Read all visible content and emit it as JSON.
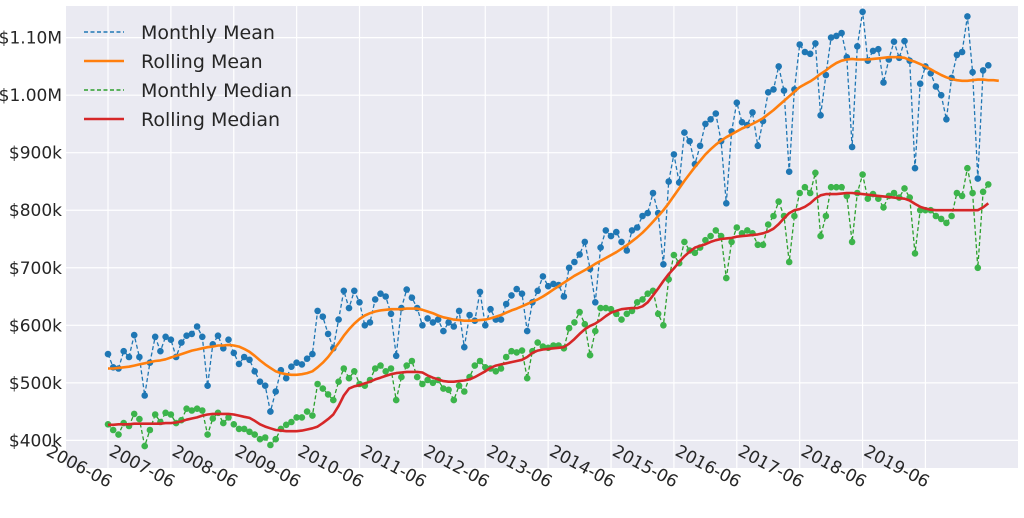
{
  "chart_data": {
    "type": "line",
    "title": "",
    "xlabel": "",
    "ylabel": "",
    "x_start": "2006-06",
    "x_tick_labels": [
      "2006-06",
      "2007-06",
      "2008-06",
      "2009-06",
      "2010-06",
      "2011-06",
      "2012-06",
      "2013-06",
      "2014-06",
      "2015-06",
      "2016-06",
      "2017-06",
      "2018-06",
      "2019-06"
    ],
    "y_tick_values": [
      400000,
      500000,
      600000,
      700000,
      800000,
      900000,
      1000000,
      1100000
    ],
    "y_tick_labels": [
      "$400k",
      "$500k",
      "$600k",
      "$700k",
      "$800k",
      "$900k",
      "$1.00M",
      "$1.10M"
    ],
    "ylim": [
      352000,
      1155000
    ],
    "grid": true,
    "legend_position": "top-left",
    "background": "#eaeaf2",
    "series": [
      {
        "name": "Monthly Mean",
        "color": "#1f77b4",
        "style": "dashed",
        "markers": true,
        "values": [
          550000,
          527000,
          525000,
          555000,
          545000,
          583000,
          545000,
          478000,
          535000,
          580000,
          555000,
          580000,
          575000,
          545000,
          570000,
          582000,
          585000,
          598000,
          580000,
          495000,
          567000,
          582000,
          560000,
          575000,
          552000,
          533000,
          545000,
          540000,
          520000,
          502000,
          495000,
          450000,
          485000,
          522000,
          508000,
          528000,
          535000,
          532000,
          542000,
          550000,
          625000,
          615000,
          585000,
          560000,
          610000,
          660000,
          630000,
          660000,
          640000,
          600000,
          605000,
          645000,
          655000,
          650000,
          620000,
          547000,
          630000,
          662000,
          648000,
          630000,
          600000,
          612000,
          605000,
          610000,
          590000,
          605000,
          598000,
          625000,
          562000,
          618000,
          608000,
          658000,
          600000,
          628000,
          610000,
          610000,
          637000,
          652000,
          663000,
          655000,
          590000,
          640000,
          660000,
          685000,
          668000,
          672000,
          670000,
          650000,
          700000,
          710000,
          723000,
          745000,
          698000,
          640000,
          735000,
          765000,
          755000,
          762000,
          745000,
          730000,
          765000,
          770000,
          790000,
          795000,
          830000,
          795000,
          706000,
          850000,
          897000,
          848000,
          935000,
          920000,
          880000,
          912000,
          950000,
          958000,
          968000,
          920000,
          812000,
          937000,
          987000,
          953000,
          948000,
          970000,
          912000,
          955000,
          1005000,
          1010000,
          1050000,
          1008000,
          867000,
          1010000,
          1088000,
          1075000,
          1072000,
          1090000,
          965000,
          1035000,
          1100000,
          1103000,
          1108000,
          1066000,
          910000,
          1085000,
          1145000,
          1060000,
          1077000,
          1080000,
          1022000,
          1062000,
          1093000,
          1065000,
          1094000,
          1060000,
          873000,
          1020000,
          1050000,
          1038000,
          1015000,
          1000000,
          958000,
          1030000,
          1070000,
          1075000,
          1137000,
          1040000,
          855000,
          1043000,
          1052000
        ]
      },
      {
        "name": "Rolling Mean",
        "color": "#ff7f0e",
        "style": "solid",
        "markers": false,
        "values": [
          525000,
          525000,
          526000,
          527000,
          528000,
          530000,
          532000,
          534000,
          536000,
          538000,
          539000,
          541000,
          544000,
          547000,
          550000,
          553000,
          556000,
          558000,
          560000,
          562000,
          563000,
          565000,
          565000,
          566000,
          565000,
          563000,
          559000,
          554000,
          547000,
          539000,
          532000,
          526000,
          520000,
          517000,
          515000,
          514000,
          514000,
          515000,
          517000,
          520000,
          527000,
          535000,
          545000,
          557000,
          569000,
          582000,
          593000,
          603000,
          611000,
          617000,
          621000,
          624000,
          626000,
          627000,
          628000,
          628000,
          628000,
          629000,
          629000,
          629000,
          627000,
          624000,
          621000,
          617000,
          614000,
          612000,
          610000,
          609000,
          608000,
          608000,
          608000,
          609000,
          610000,
          612000,
          615000,
          618000,
          622000,
          626000,
          629000,
          633000,
          637000,
          641000,
          645000,
          650000,
          656000,
          662000,
          668000,
          674000,
          680000,
          686000,
          691000,
          696000,
          701000,
          707000,
          712000,
          717000,
          722000,
          727000,
          733000,
          739000,
          746000,
          753000,
          761000,
          770000,
          780000,
          790000,
          800000,
          812000,
          825000,
          838000,
          851000,
          863000,
          875000,
          886000,
          897000,
          906000,
          914000,
          921000,
          927000,
          932000,
          937000,
          942000,
          946000,
          950000,
          955000,
          960000,
          967000,
          974000,
          982000,
          990000,
          998000,
          1006000,
          1014000,
          1019000,
          1024000,
          1030000,
          1037000,
          1043000,
          1050000,
          1056000,
          1060000,
          1062000,
          1063000,
          1062000,
          1062000,
          1062000,
          1063000,
          1064000,
          1065000,
          1066000,
          1066000,
          1066000,
          1065000,
          1061000,
          1058000,
          1054000,
          1050000,
          1045000,
          1040000,
          1035000,
          1031000,
          1028000,
          1026000,
          1025000,
          1025000,
          1026000,
          1027000,
          1027000,
          1026000,
          1026000,
          1025000
        ]
      },
      {
        "name": "Monthly Median",
        "color": "#2ca02c",
        "style": "dashed",
        "markers": true,
        "values": [
          428000,
          418000,
          410000,
          430000,
          425000,
          446000,
          437000,
          390000,
          418000,
          445000,
          432000,
          448000,
          445000,
          430000,
          435000,
          455000,
          452000,
          455000,
          452000,
          410000,
          438000,
          448000,
          430000,
          440000,
          428000,
          420000,
          420000,
          415000,
          410000,
          402000,
          405000,
          392000,
          402000,
          420000,
          427000,
          432000,
          440000,
          440000,
          450000,
          443000,
          498000,
          490000,
          480000,
          470000,
          502000,
          525000,
          508000,
          520000,
          498000,
          495000,
          505000,
          525000,
          530000,
          520000,
          525000,
          470000,
          510000,
          530000,
          538000,
          510000,
          498000,
          505000,
          500000,
          505000,
          490000,
          488000,
          470000,
          495000,
          485000,
          510000,
          530000,
          538000,
          527000,
          525000,
          520000,
          525000,
          545000,
          555000,
          553000,
          556000,
          508000,
          555000,
          570000,
          563000,
          561000,
          565000,
          565000,
          560000,
          595000,
          605000,
          623000,
          602000,
          548000,
          590000,
          630000,
          630000,
          628000,
          620000,
          610000,
          620000,
          625000,
          640000,
          645000,
          655000,
          660000,
          620000,
          600000,
          680000,
          722000,
          708000,
          745000,
          730000,
          726000,
          735000,
          748000,
          755000,
          765000,
          755000,
          682000,
          745000,
          770000,
          760000,
          765000,
          760000,
          740000,
          740000,
          775000,
          790000,
          815000,
          790000,
          710000,
          790000,
          830000,
          840000,
          830000,
          865000,
          755000,
          790000,
          840000,
          840000,
          840000,
          825000,
          745000,
          830000,
          862000,
          820000,
          828000,
          820000,
          805000,
          825000,
          830000,
          822000,
          838000,
          822000,
          725000,
          800000,
          800000,
          800000,
          790000,
          785000,
          778000,
          790000,
          830000,
          825000,
          873000,
          830000,
          700000,
          832000,
          845000
        ]
      },
      {
        "name": "Rolling Median",
        "color": "#d62728",
        "style": "solid",
        "markers": false,
        "values": [
          427000,
          427000,
          428000,
          428000,
          428000,
          429000,
          429000,
          429000,
          429000,
          429000,
          429000,
          430000,
          430000,
          431000,
          433000,
          436000,
          438000,
          440000,
          443000,
          445000,
          446000,
          446000,
          446000,
          446000,
          445000,
          443000,
          441000,
          439000,
          434000,
          428000,
          424000,
          421000,
          418000,
          417000,
          416000,
          416000,
          416000,
          417000,
          419000,
          421000,
          424000,
          430000,
          437000,
          445000,
          460000,
          478000,
          490000,
          494000,
          496000,
          499000,
          502000,
          506000,
          509000,
          512000,
          515000,
          517000,
          518000,
          519000,
          519000,
          519000,
          518000,
          513000,
          509000,
          506000,
          503000,
          502000,
          502000,
          503000,
          504000,
          506000,
          510000,
          515000,
          520000,
          526000,
          530000,
          532000,
          534000,
          536000,
          538000,
          540000,
          545000,
          552000,
          556000,
          558000,
          559000,
          560000,
          561000,
          562000,
          568000,
          576000,
          585000,
          593000,
          599000,
          603000,
          609000,
          616000,
          622000,
          625000,
          628000,
          629000,
          630000,
          630000,
          633000,
          640000,
          652000,
          664000,
          677000,
          689000,
          699000,
          710000,
          720000,
          728000,
          735000,
          738000,
          741000,
          745000,
          748000,
          750000,
          751000,
          752000,
          754000,
          755000,
          756000,
          757000,
          758000,
          760000,
          763000,
          768000,
          776000,
          786000,
          795000,
          800000,
          802000,
          806000,
          812000,
          820000,
          826000,
          828000,
          828000,
          828000,
          829000,
          830000,
          830000,
          829000,
          828000,
          827000,
          826000,
          825000,
          824000,
          823000,
          822000,
          821000,
          820000,
          817000,
          811000,
          806000,
          803000,
          801000,
          800000,
          800000,
          800000,
          800000,
          800000,
          800000,
          800000,
          800000,
          800000,
          805000,
          812000
        ]
      }
    ]
  }
}
